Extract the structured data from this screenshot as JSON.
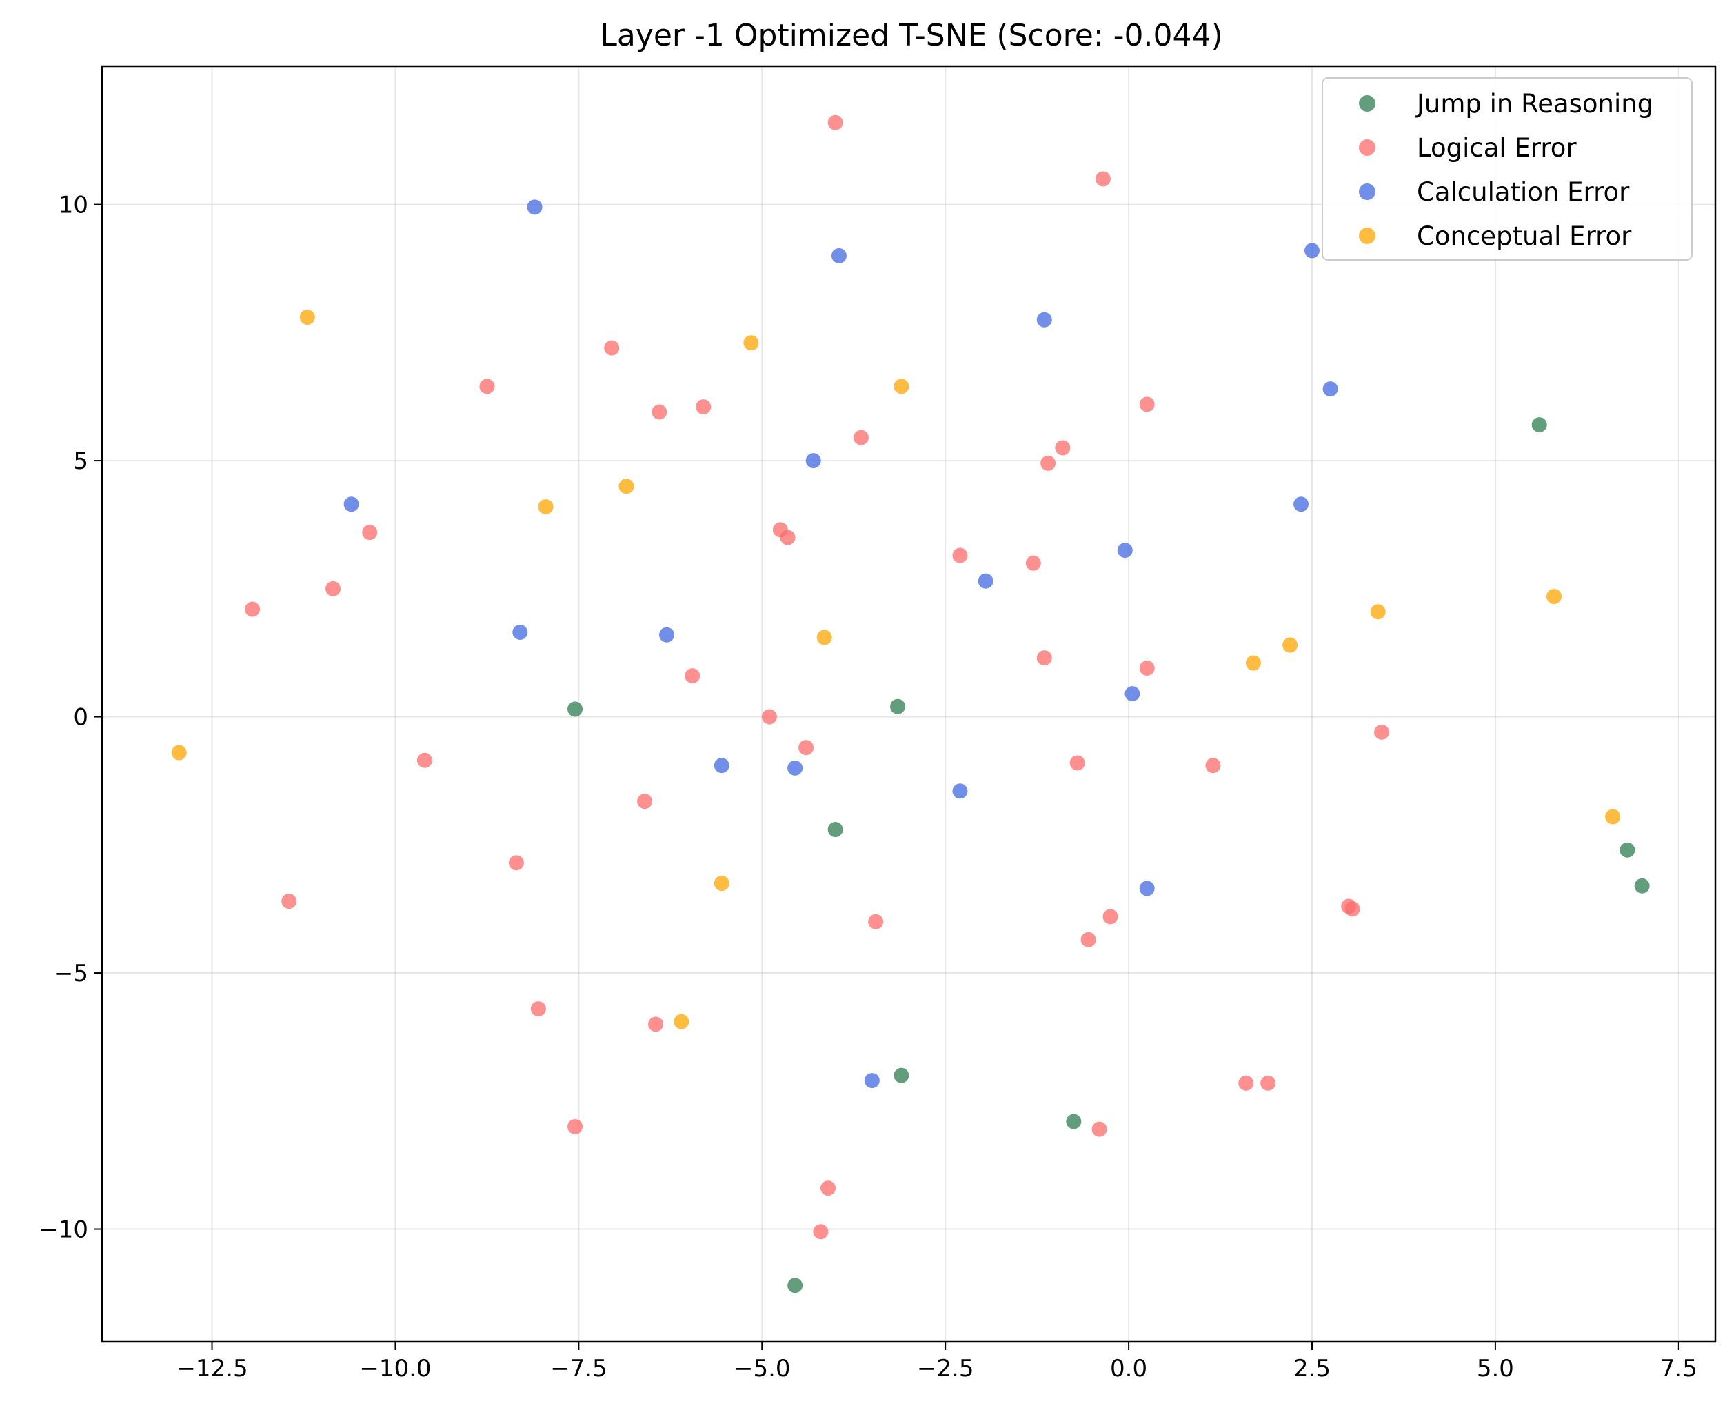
{
  "chart_data": {
    "type": "scatter",
    "title": "Layer -1 Optimized T-SNE (Score: -0.044)",
    "xlabel": "",
    "ylabel": "",
    "xlim": [
      -14.0,
      8.0
    ],
    "ylim": [
      -12.2,
      12.7
    ],
    "xticks": [
      -12.5,
      -10.0,
      -7.5,
      -5.0,
      -2.5,
      0.0,
      2.5,
      5.0,
      7.5
    ],
    "xtick_labels": [
      "−12.5",
      "−10.0",
      "−7.5",
      "−5.0",
      "−2.5",
      "0.0",
      "2.5",
      "5.0",
      "7.5"
    ],
    "yticks": [
      10,
      5,
      0,
      -5,
      -10
    ],
    "ytick_labels": [
      "10",
      "5",
      "0",
      "−5",
      "−10"
    ],
    "grid": true,
    "legend_position": "top-right",
    "series": [
      {
        "name": "Jump in Reasoning",
        "color": "#2e7d4f",
        "points": [
          [
            5.6,
            5.7
          ],
          [
            6.8,
            -2.6
          ],
          [
            7.0,
            -3.3
          ],
          [
            -7.55,
            0.15
          ],
          [
            -3.15,
            0.2
          ],
          [
            -4.0,
            -2.2
          ],
          [
            -3.1,
            -7.0
          ],
          [
            -0.75,
            -7.9
          ],
          [
            -4.55,
            -11.1
          ]
        ]
      },
      {
        "name": "Logical Error",
        "color": "#ff6b6b",
        "points": [
          [
            -4.0,
            11.6
          ],
          [
            -0.35,
            10.5
          ],
          [
            -7.05,
            7.2
          ],
          [
            -8.75,
            6.45
          ],
          [
            -6.4,
            5.95
          ],
          [
            -5.8,
            6.05
          ],
          [
            -3.65,
            5.45
          ],
          [
            0.25,
            6.1
          ],
          [
            -0.9,
            5.25
          ],
          [
            -1.1,
            4.95
          ],
          [
            -10.35,
            3.6
          ],
          [
            -4.75,
            3.65
          ],
          [
            -4.65,
            3.5
          ],
          [
            -2.3,
            3.15
          ],
          [
            -1.3,
            3.0
          ],
          [
            -10.85,
            2.5
          ],
          [
            -11.95,
            2.1
          ],
          [
            -5.95,
            0.8
          ],
          [
            -1.15,
            1.15
          ],
          [
            0.25,
            0.95
          ],
          [
            -4.9,
            0.0
          ],
          [
            -4.4,
            -0.6
          ],
          [
            -9.6,
            -0.85
          ],
          [
            -0.7,
            -0.9
          ],
          [
            1.15,
            -0.95
          ],
          [
            3.45,
            -0.3
          ],
          [
            -6.6,
            -1.65
          ],
          [
            -8.35,
            -2.85
          ],
          [
            -11.45,
            -3.6
          ],
          [
            -3.45,
            -4.0
          ],
          [
            -0.25,
            -3.9
          ],
          [
            -0.55,
            -4.35
          ],
          [
            3.0,
            -3.7
          ],
          [
            3.05,
            -3.75
          ],
          [
            -8.05,
            -5.7
          ],
          [
            -6.45,
            -6.0
          ],
          [
            1.6,
            -7.15
          ],
          [
            1.9,
            -7.15
          ],
          [
            -7.55,
            -8.0
          ],
          [
            -0.4,
            -8.05
          ],
          [
            -4.1,
            -9.2
          ],
          [
            -4.2,
            -10.05
          ]
        ]
      },
      {
        "name": "Calculation Error",
        "color": "#4169e1",
        "points": [
          [
            -8.1,
            9.95
          ],
          [
            -3.95,
            9.0
          ],
          [
            2.5,
            9.1
          ],
          [
            -1.15,
            7.75
          ],
          [
            2.75,
            6.4
          ],
          [
            -4.3,
            5.0
          ],
          [
            -10.6,
            4.15
          ],
          [
            2.35,
            4.15
          ],
          [
            -0.05,
            3.25
          ],
          [
            -1.95,
            2.65
          ],
          [
            -8.3,
            1.65
          ],
          [
            -6.3,
            1.6
          ],
          [
            0.05,
            0.45
          ],
          [
            -5.55,
            -0.95
          ],
          [
            -4.55,
            -1.0
          ],
          [
            -2.3,
            -1.45
          ],
          [
            0.25,
            -3.35
          ],
          [
            -3.5,
            -7.1
          ]
        ]
      },
      {
        "name": "Conceptual Error",
        "color": "#ffa500",
        "points": [
          [
            -11.2,
            7.8
          ],
          [
            -5.15,
            7.3
          ],
          [
            -3.1,
            6.45
          ],
          [
            -6.85,
            4.5
          ],
          [
            -7.95,
            4.1
          ],
          [
            3.4,
            2.05
          ],
          [
            5.8,
            2.35
          ],
          [
            -4.15,
            1.55
          ],
          [
            2.2,
            1.4
          ],
          [
            1.7,
            1.05
          ],
          [
            -12.95,
            -0.7
          ],
          [
            6.6,
            -1.95
          ],
          [
            -5.55,
            -3.25
          ],
          [
            -6.1,
            -5.95
          ]
        ]
      }
    ]
  }
}
